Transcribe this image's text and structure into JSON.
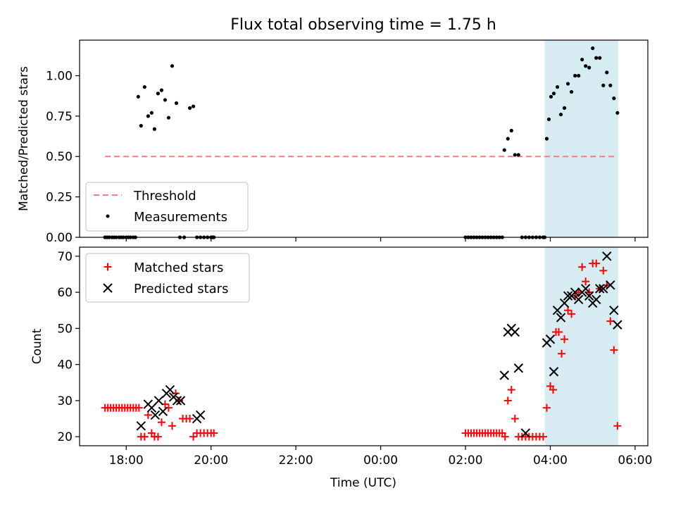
{
  "title": "Flux total observing time = 1.75 h",
  "colors": {
    "threshold": "#f08080",
    "measurement": "#000000",
    "matched": "#ff0000",
    "predicted": "#000000",
    "shade": "#add8e6"
  },
  "chart_data": [
    {
      "type": "scatter",
      "panel": "top",
      "ylabel": "Matched/Predicted stars",
      "ylim": [
        0,
        1.22
      ],
      "yticks": [
        "0.00",
        "0.25",
        "0.50",
        "0.75",
        "1.00"
      ],
      "xlim": [
        16.9,
        30.3
      ],
      "x_unit": "hours (UTC, continuing past midnight)",
      "shaded_region": [
        27.87,
        29.6
      ],
      "legend_position": "lower-left",
      "threshold": {
        "name": "Threshold",
        "value": 0.5,
        "x_range": [
          "17:30",
          "05:35"
        ]
      },
      "series": [
        {
          "name": "Measurements",
          "x": [
            "17:30",
            "17:33",
            "17:36",
            "17:40",
            "17:43",
            "17:46",
            "17:50",
            "17:53",
            "17:56",
            "18:00",
            "18:03",
            "18:06",
            "18:10",
            "18:13",
            "18:17",
            "18:21",
            "18:26",
            "18:31",
            "18:36",
            "18:40",
            "18:45",
            "18:50",
            "18:55",
            "19:00",
            "19:05",
            "19:11",
            "19:16",
            "19:22",
            "19:30",
            "19:35",
            "19:40",
            "19:45",
            "19:50",
            "19:55",
            "20:00",
            "20:02",
            "20:04",
            "02:00",
            "02:04",
            "02:08",
            "02:12",
            "02:16",
            "02:20",
            "02:24",
            "02:28",
            "02:32",
            "02:36",
            "02:40",
            "02:44",
            "02:48",
            "02:52",
            "02:55",
            "03:00",
            "03:05",
            "03:10",
            "03:15",
            "03:20",
            "03:25",
            "03:30",
            "03:35",
            "03:40",
            "03:45",
            "03:50",
            "03:52",
            "03:55",
            "03:58",
            "04:01",
            "04:05",
            "04:10",
            "04:15",
            "04:20",
            "04:25",
            "04:30",
            "04:35",
            "04:40",
            "04:45",
            "04:50",
            "04:55",
            "05:00",
            "05:05",
            "05:10",
            "05:15",
            "05:20",
            "05:25",
            "05:30",
            "05:35"
          ],
          "y": [
            0,
            0,
            0,
            0,
            0,
            0,
            0,
            0,
            0,
            0,
            0,
            0,
            0,
            0,
            0.87,
            0.69,
            0.93,
            0.75,
            0.77,
            0.67,
            0.89,
            0.91,
            0.85,
            0.74,
            1.06,
            0.83,
            0,
            0,
            0.8,
            0.81,
            0,
            0,
            0,
            0,
            0,
            0,
            0,
            0,
            0,
            0,
            0,
            0,
            0,
            0,
            0,
            0,
            0,
            0,
            0,
            0,
            0,
            0.54,
            0.61,
            0.66,
            0.51,
            0.51,
            0,
            0,
            0,
            0,
            0,
            0,
            0,
            0,
            0.61,
            0.73,
            0.87,
            0.89,
            0.93,
            0.76,
            0.8,
            0.95,
            0.9,
            1.0,
            1.0,
            1.1,
            1.06,
            1.05,
            1.17,
            1.11,
            1.11,
            0.94,
            1.02,
            0.94,
            0.86,
            0.77
          ]
        }
      ]
    },
    {
      "type": "scatter",
      "panel": "bottom",
      "ylabel": "Count",
      "xlabel": "Time (UTC)",
      "ylim": [
        17.5,
        72.5
      ],
      "yticks": [
        "20",
        "30",
        "40",
        "50",
        "60",
        "70"
      ],
      "xlim": [
        16.9,
        30.3
      ],
      "xticks": [
        "18:00",
        "20:00",
        "22:00",
        "00:00",
        "02:00",
        "04:00",
        "06:00"
      ],
      "shaded_region": [
        27.87,
        29.6
      ],
      "legend_position": "upper-left",
      "series": [
        {
          "name": "Matched stars",
          "marker": "plus",
          "x": [
            "17:30",
            "17:34",
            "17:38",
            "17:42",
            "17:46",
            "17:50",
            "17:54",
            "17:58",
            "18:02",
            "18:06",
            "18:10",
            "18:14",
            "18:18",
            "18:21",
            "18:26",
            "18:31",
            "18:36",
            "18:40",
            "18:45",
            "18:50",
            "18:55",
            "19:00",
            "19:05",
            "19:10",
            "19:15",
            "19:20",
            "19:25",
            "19:30",
            "19:35",
            "19:40",
            "19:45",
            "19:50",
            "19:55",
            "20:00",
            "20:04",
            "02:00",
            "02:04",
            "02:08",
            "02:12",
            "02:16",
            "02:20",
            "02:24",
            "02:28",
            "02:32",
            "02:36",
            "02:40",
            "02:44",
            "02:48",
            "02:52",
            "02:56",
            "03:00",
            "03:05",
            "03:10",
            "03:15",
            "03:20",
            "03:25",
            "03:30",
            "03:35",
            "03:40",
            "03:45",
            "03:50",
            "03:55",
            "04:00",
            "04:04",
            "04:08",
            "04:12",
            "04:16",
            "04:20",
            "04:25",
            "04:30",
            "04:35",
            "04:40",
            "04:45",
            "04:50",
            "04:55",
            "05:00",
            "05:05",
            "05:10",
            "05:15",
            "05:20",
            "05:25",
            "05:30",
            "05:35"
          ],
          "y": [
            28,
            28,
            28,
            28,
            28,
            28,
            28,
            28,
            28,
            28,
            28,
            28,
            28,
            20,
            20,
            26,
            21,
            20,
            20,
            24,
            29,
            28,
            23,
            32,
            30,
            25,
            25,
            25,
            20,
            21,
            21,
            21,
            21,
            21,
            21,
            21,
            21,
            21,
            21,
            21,
            21,
            21,
            21,
            21,
            21,
            21,
            21,
            21,
            21,
            20,
            30,
            33,
            25,
            20,
            20,
            20,
            20,
            20,
            20,
            20,
            20,
            28,
            34,
            33,
            49,
            49,
            43,
            47,
            55,
            54,
            59,
            60,
            67,
            63,
            60,
            68,
            68,
            61,
            66,
            62,
            52,
            44,
            23
          ]
        },
        {
          "name": "Predicted stars",
          "marker": "x",
          "x": [
            "18:21",
            "18:31",
            "18:36",
            "18:41",
            "18:46",
            "18:52",
            "18:57",
            "19:02",
            "19:07",
            "19:12",
            "19:17",
            "19:40",
            "19:45",
            "02:55",
            "03:00",
            "03:05",
            "03:10",
            "03:15",
            "03:25",
            "03:55",
            "04:00",
            "04:05",
            "04:10",
            "04:15",
            "04:20",
            "04:25",
            "04:30",
            "04:35",
            "04:40",
            "04:45",
            "04:50",
            "04:55",
            "05:00",
            "05:05",
            "05:10",
            "05:15",
            "05:20",
            "05:25",
            "05:30",
            "05:35"
          ],
          "y": [
            23,
            29,
            28,
            26,
            30,
            27,
            32,
            33,
            31,
            30,
            30,
            25,
            26,
            37,
            49,
            50,
            49,
            39,
            21,
            46,
            47,
            38,
            55,
            53,
            57,
            59,
            59,
            60,
            58,
            60,
            61,
            59,
            57,
            58,
            61,
            61,
            70,
            62,
            55,
            51
          ]
        }
      ]
    }
  ]
}
